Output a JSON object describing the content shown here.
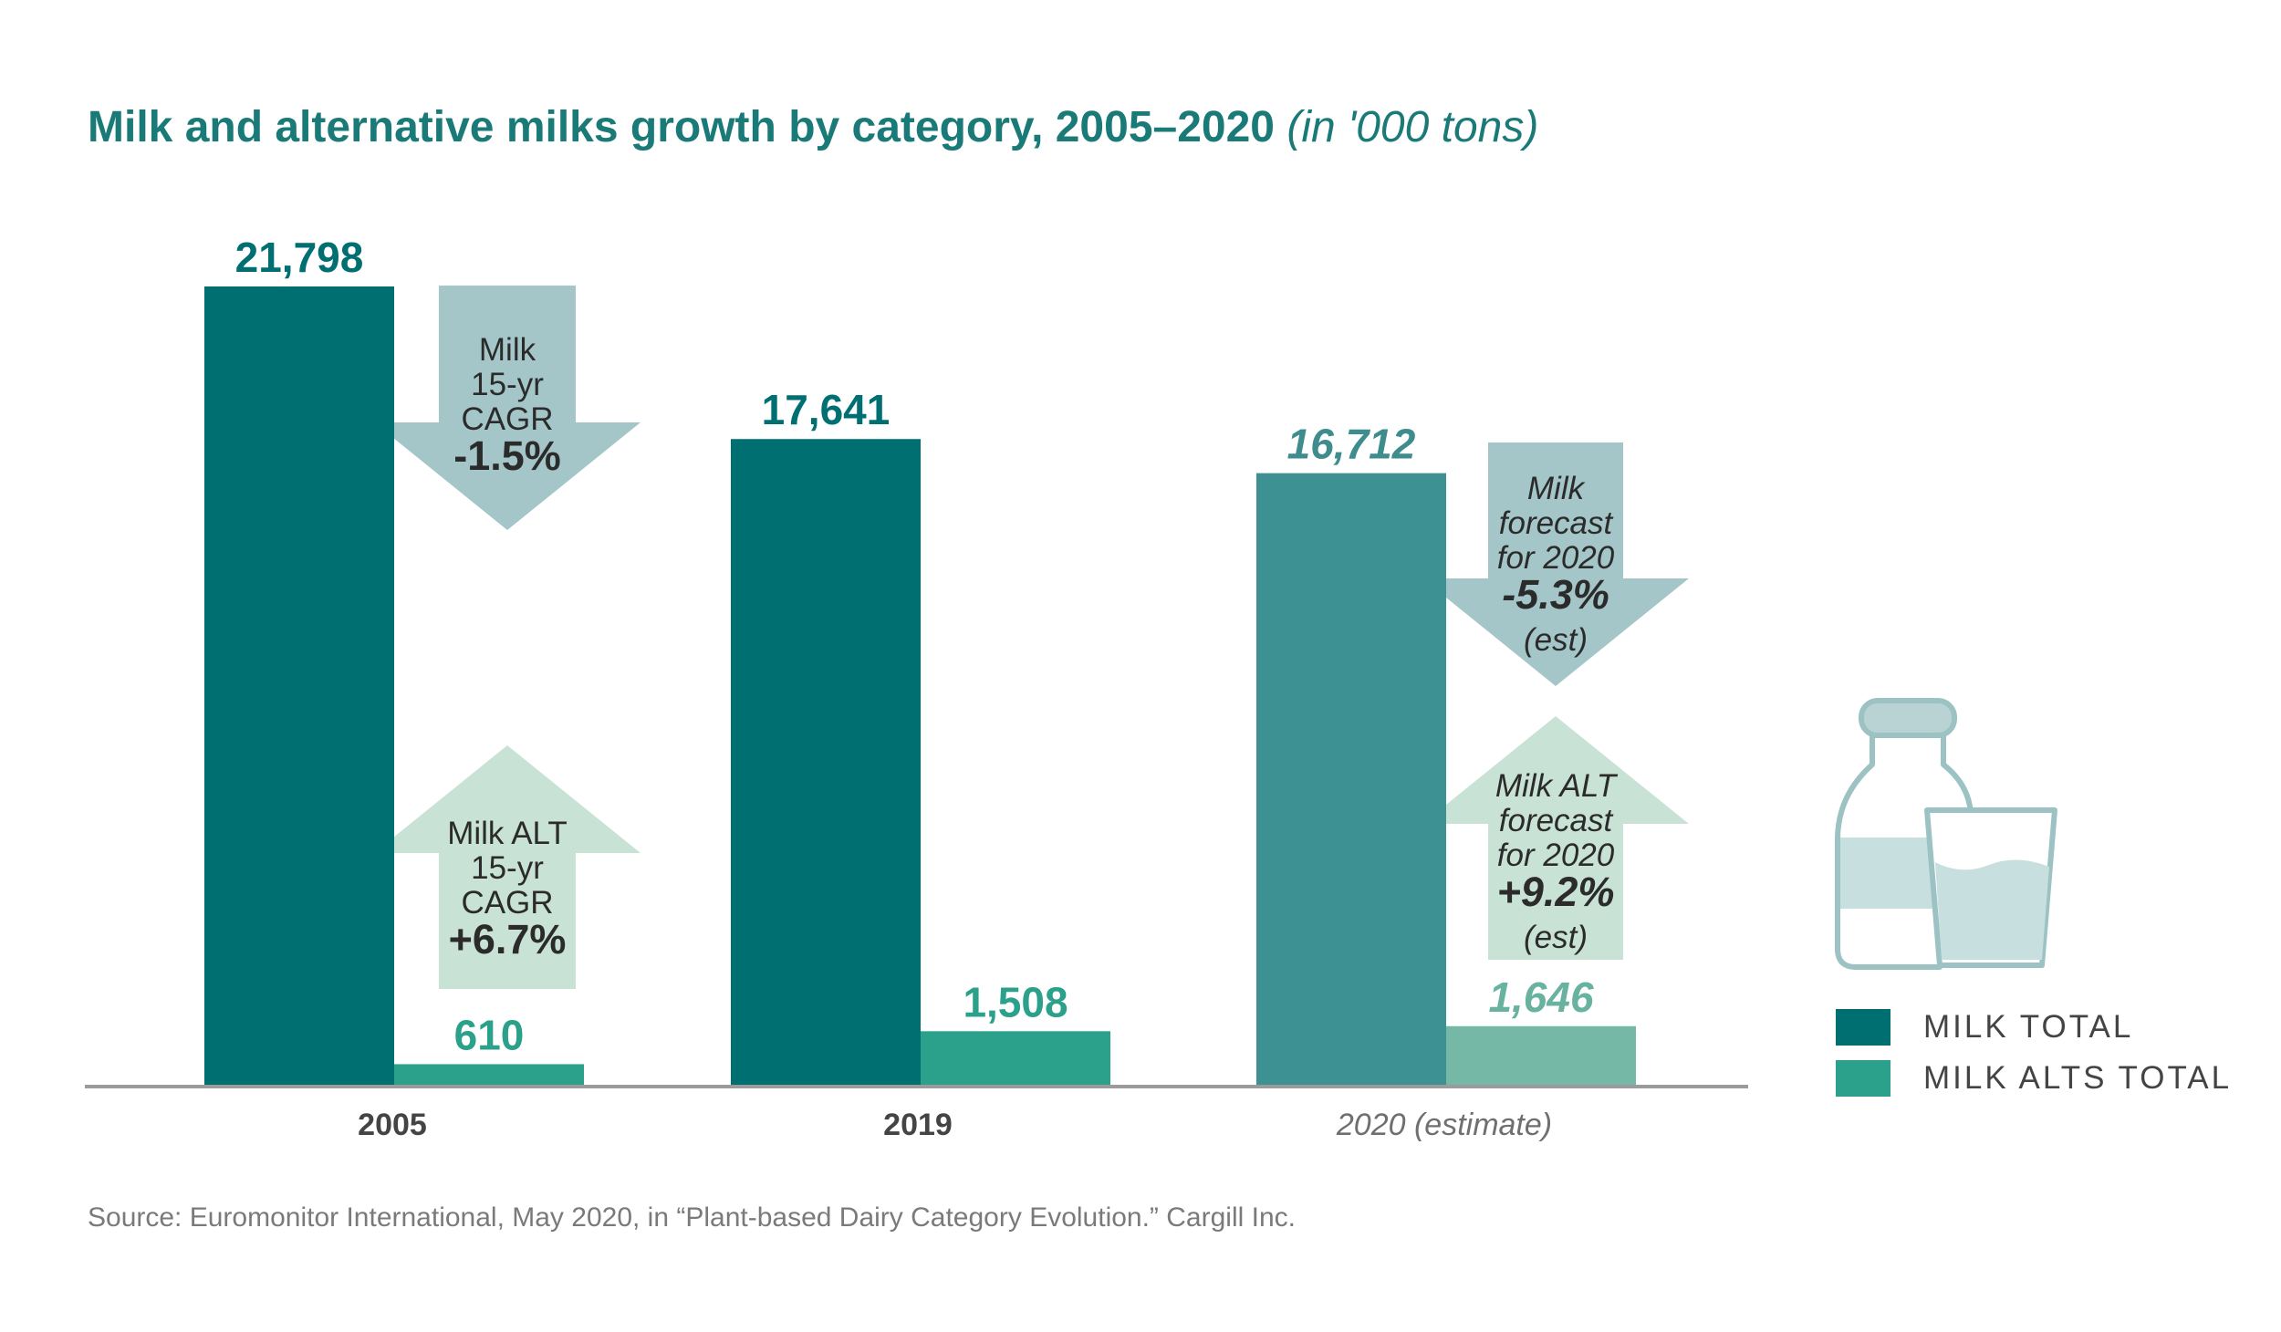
{
  "title": {
    "main": "Milk and alternative milks growth by category, 2005–2020",
    "unit": "(in '000 tons)"
  },
  "source": "Source: Euromonitor International, May 2020, in “Plant-based Dairy Category Evolution.” Cargill Inc.",
  "colors": {
    "milk": "#006f72",
    "milk_alt": "#2ba08a",
    "milk_estimate": "#3e9193",
    "milk_alt_estimate": "#76b8a6",
    "arrow_down": "#a4c6c8",
    "arrow_up": "#c8e2d6",
    "label_milk": "#006f72",
    "label_alt": "#2ba08a",
    "label_milk_est": "#3e8c8e",
    "label_alt_est": "#69b29f",
    "axis": "#9b9b9b"
  },
  "chart_data": {
    "type": "bar",
    "categories": [
      "2005",
      "2019",
      "2020 (estimate)"
    ],
    "series": [
      {
        "name": "MILK TOTAL",
        "values": [
          21798,
          17641,
          16712
        ],
        "labels": [
          "21,798",
          "17,641",
          "16,712"
        ]
      },
      {
        "name": "MILK ALTS TOTAL",
        "values": [
          610,
          1508,
          1646
        ],
        "labels": [
          "610",
          "1,508",
          "1,646"
        ]
      }
    ],
    "estimate_category": "2020 (estimate)",
    "ylim": [
      0,
      21798
    ],
    "grid": false,
    "legend": "right"
  },
  "annotations": [
    {
      "id": "milk-cagr",
      "direction": "down",
      "lines": [
        "Milk",
        "15-yr",
        "CAGR"
      ],
      "value": "-1.5%",
      "italic": false
    },
    {
      "id": "alt-cagr",
      "direction": "up",
      "lines": [
        "Milk ALT",
        "15-yr",
        "CAGR"
      ],
      "value": "+6.7%",
      "italic": false
    },
    {
      "id": "milk-forecast",
      "direction": "down",
      "lines": [
        "Milk",
        "forecast",
        "for 2020"
      ],
      "value": "-5.3%",
      "suffix": "(est)",
      "italic": true
    },
    {
      "id": "alt-forecast",
      "direction": "up",
      "lines": [
        "Milk ALT",
        "forecast",
        "for 2020"
      ],
      "value": "+9.2%",
      "suffix": "(est)",
      "italic": true
    }
  ],
  "icon": "milk-bottle-and-glass-icon"
}
